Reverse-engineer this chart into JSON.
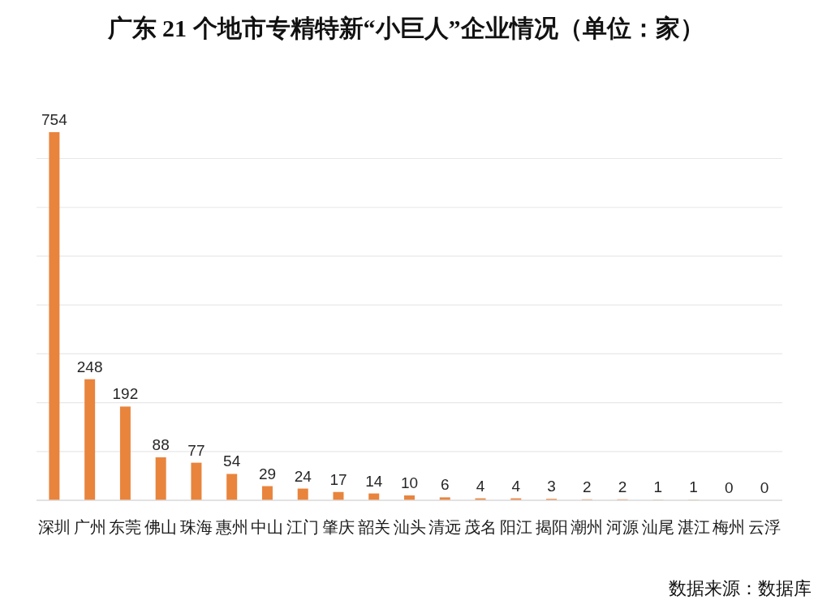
{
  "chart_data": {
    "type": "bar",
    "title": "广东 21 个地市专精特新“小巨人”企业情况（单位：家）",
    "categories": [
      "深圳",
      "广州",
      "东莞",
      "佛山",
      "珠海",
      "惠州",
      "中山",
      "江门",
      "肇庆",
      "韶关",
      "汕头",
      "清远",
      "茂名",
      "阳江",
      "揭阳",
      "潮州",
      "河源",
      "汕尾",
      "湛江",
      "梅州",
      "云浮"
    ],
    "values": [
      754,
      248,
      192,
      88,
      77,
      54,
      29,
      24,
      17,
      14,
      10,
      6,
      4,
      4,
      3,
      2,
      2,
      1,
      1,
      0,
      0
    ],
    "color": "#e9843d",
    "yticks": [
      {
        "value": 0,
        "label": null
      },
      {
        "value": 100,
        "label": null
      },
      {
        "value": 200,
        "label": null
      },
      {
        "value": 300,
        "label": null
      },
      {
        "value": 400,
        "label": null
      },
      {
        "value": 500,
        "label": null
      },
      {
        "value": 600,
        "label": null
      },
      {
        "value": 700,
        "label": null
      }
    ],
    "tick_labels": "x",
    "grid": "y",
    "data_labels": true,
    "annotations": [
      "数据来源：数据库"
    ]
  }
}
